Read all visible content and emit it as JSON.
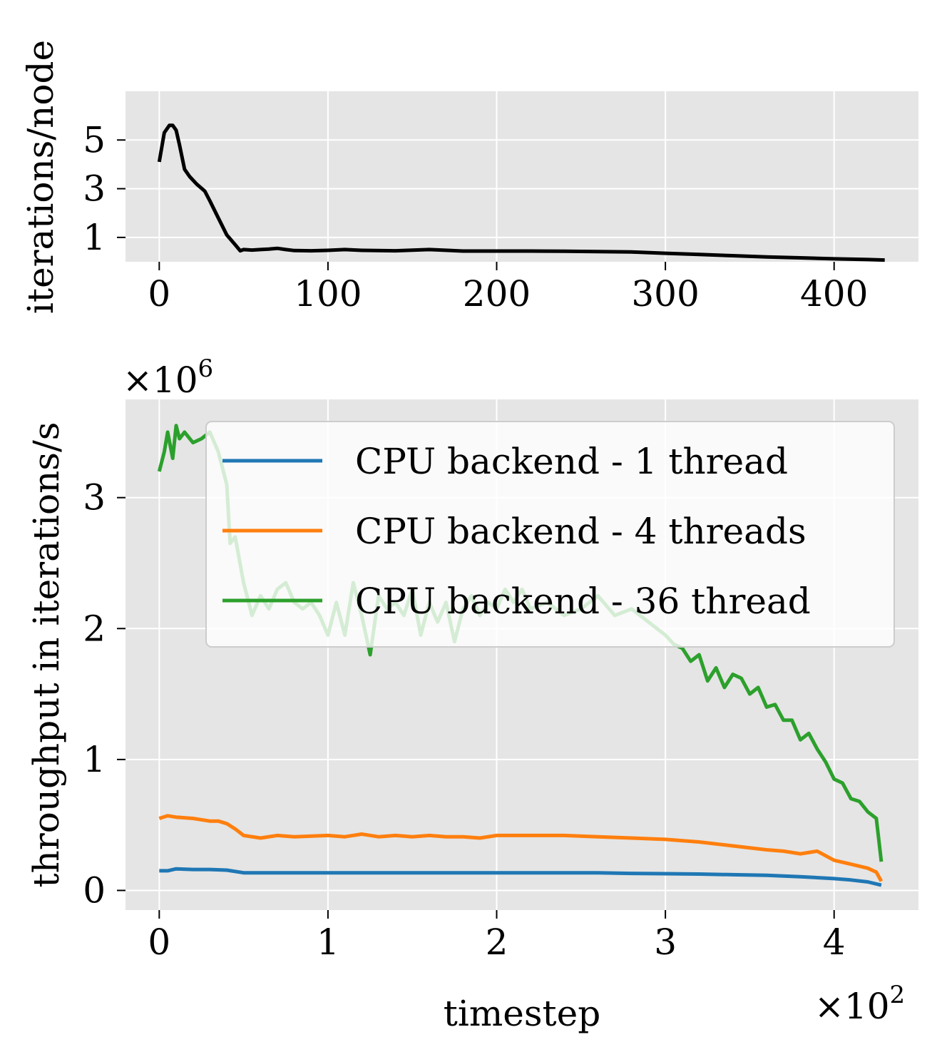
{
  "chart_data": [
    {
      "type": "line",
      "ylabel": "iterations/node",
      "xlim": [
        -20,
        450
      ],
      "ylim": [
        0,
        7
      ],
      "xticks": [
        0,
        100,
        200,
        300,
        400
      ],
      "yticks": [
        1,
        3,
        5
      ],
      "grid": true,
      "series": [
        {
          "color": "#000000",
          "x": [
            0,
            3,
            6,
            8,
            10,
            12,
            15,
            18,
            22,
            27,
            30,
            35,
            40,
            45,
            48,
            50,
            55,
            60,
            65,
            70,
            75,
            80,
            90,
            100,
            110,
            120,
            140,
            160,
            180,
            200,
            220,
            240,
            260,
            280,
            300,
            320,
            340,
            360,
            380,
            400,
            420,
            430
          ],
          "y": [
            4.1,
            5.3,
            5.6,
            5.6,
            5.4,
            4.8,
            3.8,
            3.5,
            3.2,
            2.9,
            2.5,
            1.8,
            1.1,
            0.7,
            0.45,
            0.5,
            0.48,
            0.5,
            0.52,
            0.55,
            0.5,
            0.46,
            0.45,
            0.47,
            0.5,
            0.47,
            0.45,
            0.5,
            0.44,
            0.44,
            0.44,
            0.43,
            0.42,
            0.4,
            0.35,
            0.3,
            0.25,
            0.2,
            0.16,
            0.12,
            0.09,
            0.07
          ]
        }
      ]
    },
    {
      "type": "line",
      "xlabel": "timestep",
      "ylabel": "throughput in iterations/s",
      "y_offset_label": "×10",
      "y_offset_exp": "6",
      "x_offset_label": "×10",
      "x_offset_exp": "2",
      "xlim": [
        -0.2,
        4.5
      ],
      "ylim": [
        -0.15,
        3.75
      ],
      "xticks": [
        0,
        1,
        2,
        3,
        4
      ],
      "yticks": [
        0,
        1,
        2,
        3
      ],
      "grid": true,
      "legend_position": "upper-right",
      "series": [
        {
          "name": "CPU backend - 1 thread",
          "color": "#1f77b4",
          "x": [
            0,
            0.05,
            0.1,
            0.2,
            0.3,
            0.4,
            0.5,
            0.6,
            0.8,
            1.0,
            1.2,
            1.4,
            1.6,
            1.8,
            2.0,
            2.2,
            2.4,
            2.6,
            2.8,
            3.0,
            3.2,
            3.4,
            3.6,
            3.8,
            4.0,
            4.1,
            4.2,
            4.28
          ],
          "y": [
            0.15,
            0.15,
            0.165,
            0.16,
            0.16,
            0.155,
            0.135,
            0.135,
            0.135,
            0.135,
            0.135,
            0.135,
            0.135,
            0.135,
            0.135,
            0.135,
            0.135,
            0.135,
            0.13,
            0.128,
            0.125,
            0.12,
            0.115,
            0.105,
            0.09,
            0.08,
            0.065,
            0.04
          ]
        },
        {
          "name": "CPU backend - 4 threads",
          "color": "#ff7f0e",
          "x": [
            0,
            0.05,
            0.1,
            0.2,
            0.3,
            0.35,
            0.4,
            0.45,
            0.5,
            0.6,
            0.7,
            0.8,
            1.0,
            1.1,
            1.2,
            1.3,
            1.4,
            1.5,
            1.6,
            1.7,
            1.8,
            1.9,
            2.0,
            2.2,
            2.4,
            2.6,
            2.8,
            3.0,
            3.2,
            3.4,
            3.6,
            3.7,
            3.8,
            3.9,
            4.0,
            4.1,
            4.2,
            4.25,
            4.28
          ],
          "y": [
            0.55,
            0.57,
            0.56,
            0.55,
            0.53,
            0.53,
            0.51,
            0.47,
            0.42,
            0.4,
            0.42,
            0.41,
            0.42,
            0.41,
            0.43,
            0.41,
            0.42,
            0.41,
            0.42,
            0.41,
            0.41,
            0.4,
            0.42,
            0.42,
            0.42,
            0.41,
            0.4,
            0.39,
            0.37,
            0.34,
            0.31,
            0.3,
            0.28,
            0.3,
            0.23,
            0.2,
            0.17,
            0.14,
            0.07
          ]
        },
        {
          "name": "CPU backend - 36 thread",
          "color": "#2ca02c",
          "x": [
            0,
            0.03,
            0.05,
            0.08,
            0.1,
            0.12,
            0.15,
            0.2,
            0.25,
            0.3,
            0.35,
            0.4,
            0.42,
            0.45,
            0.5,
            0.55,
            0.6,
            0.65,
            0.7,
            0.75,
            0.8,
            0.85,
            0.9,
            0.95,
            1.0,
            1.05,
            1.1,
            1.15,
            1.2,
            1.25,
            1.3,
            1.35,
            1.4,
            1.45,
            1.5,
            1.55,
            1.6,
            1.65,
            1.7,
            1.75,
            1.8,
            1.85,
            1.9,
            1.95,
            2.0,
            2.05,
            2.1,
            2.15,
            2.2,
            2.3,
            2.4,
            2.5,
            2.6,
            2.7,
            2.8,
            2.9,
            3.0,
            3.05,
            3.1,
            3.15,
            3.2,
            3.25,
            3.3,
            3.35,
            3.4,
            3.45,
            3.5,
            3.55,
            3.6,
            3.65,
            3.7,
            3.75,
            3.8,
            3.85,
            3.9,
            3.95,
            4.0,
            4.05,
            4.1,
            4.15,
            4.2,
            4.25,
            4.28
          ],
          "y": [
            3.2,
            3.35,
            3.5,
            3.3,
            3.55,
            3.45,
            3.5,
            3.42,
            3.45,
            3.5,
            3.35,
            3.1,
            2.65,
            2.7,
            2.35,
            2.1,
            2.25,
            2.15,
            2.3,
            2.35,
            2.2,
            2.15,
            2.2,
            2.1,
            1.95,
            2.2,
            1.95,
            2.35,
            2.1,
            1.8,
            2.25,
            2.15,
            2.2,
            2.1,
            2.3,
            1.95,
            2.2,
            2.05,
            2.2,
            1.9,
            2.15,
            2.25,
            2.1,
            2.2,
            2.15,
            2.3,
            2.2,
            2.3,
            2.15,
            2.2,
            2.1,
            2.15,
            2.25,
            2.1,
            2.15,
            2.05,
            1.95,
            1.88,
            1.85,
            1.75,
            1.8,
            1.6,
            1.7,
            1.55,
            1.65,
            1.62,
            1.5,
            1.55,
            1.4,
            1.42,
            1.3,
            1.3,
            1.15,
            1.2,
            1.08,
            0.98,
            0.85,
            0.82,
            0.7,
            0.68,
            0.6,
            0.55,
            0.22
          ]
        }
      ]
    }
  ]
}
